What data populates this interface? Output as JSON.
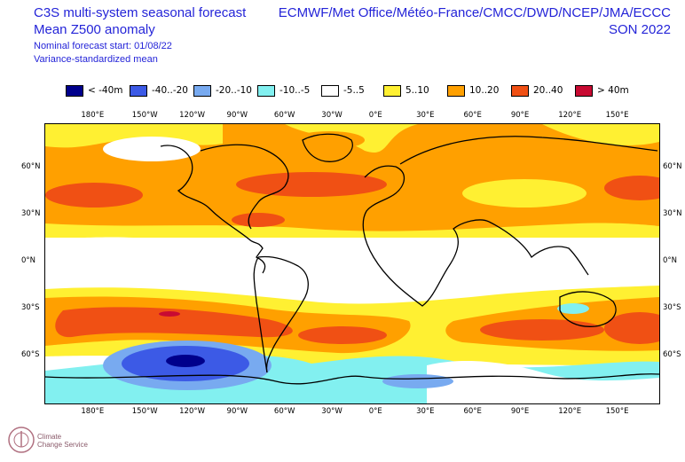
{
  "header": {
    "title_line1": "C3S multi-system seasonal forecast",
    "title_line2": "Mean Z500 anomaly",
    "subtitle_line1": "Nominal forecast start: 01/08/22",
    "subtitle_line2": "Variance-standardized mean",
    "centres": "ECMWF/Met Office/Météo-France/CMCC/DWD/NCEP/JMA/ECCC",
    "season": "SON 2022"
  },
  "legend": [
    {
      "label": "< -40m",
      "color": "#00008c"
    },
    {
      "label": "-40..-20",
      "color": "#3c5ae6"
    },
    {
      "label": "-20..-10",
      "color": "#78aaf0"
    },
    {
      "label": "-10..-5",
      "color": "#82f0f0"
    },
    {
      "label": "-5..5",
      "color": "#ffffff"
    },
    {
      "label": "5..10",
      "color": "#fff032"
    },
    {
      "label": "10..20",
      "color": "#ffa000"
    },
    {
      "label": "20..40",
      "color": "#f05014"
    },
    {
      "label": "> 40m",
      "color": "#c80a32"
    }
  ],
  "axes": {
    "lon_ticks": [
      "180°E",
      "150°W",
      "120°W",
      "90°W",
      "60°W",
      "30°W",
      "0°E",
      "30°E",
      "60°E",
      "90°E",
      "120°E",
      "150°E"
    ],
    "lat_ticks": [
      "60°N",
      "30°N",
      "0°N",
      "30°S",
      "60°S"
    ]
  },
  "logo": {
    "line1": "Climate",
    "line2": "Change Service"
  }
}
